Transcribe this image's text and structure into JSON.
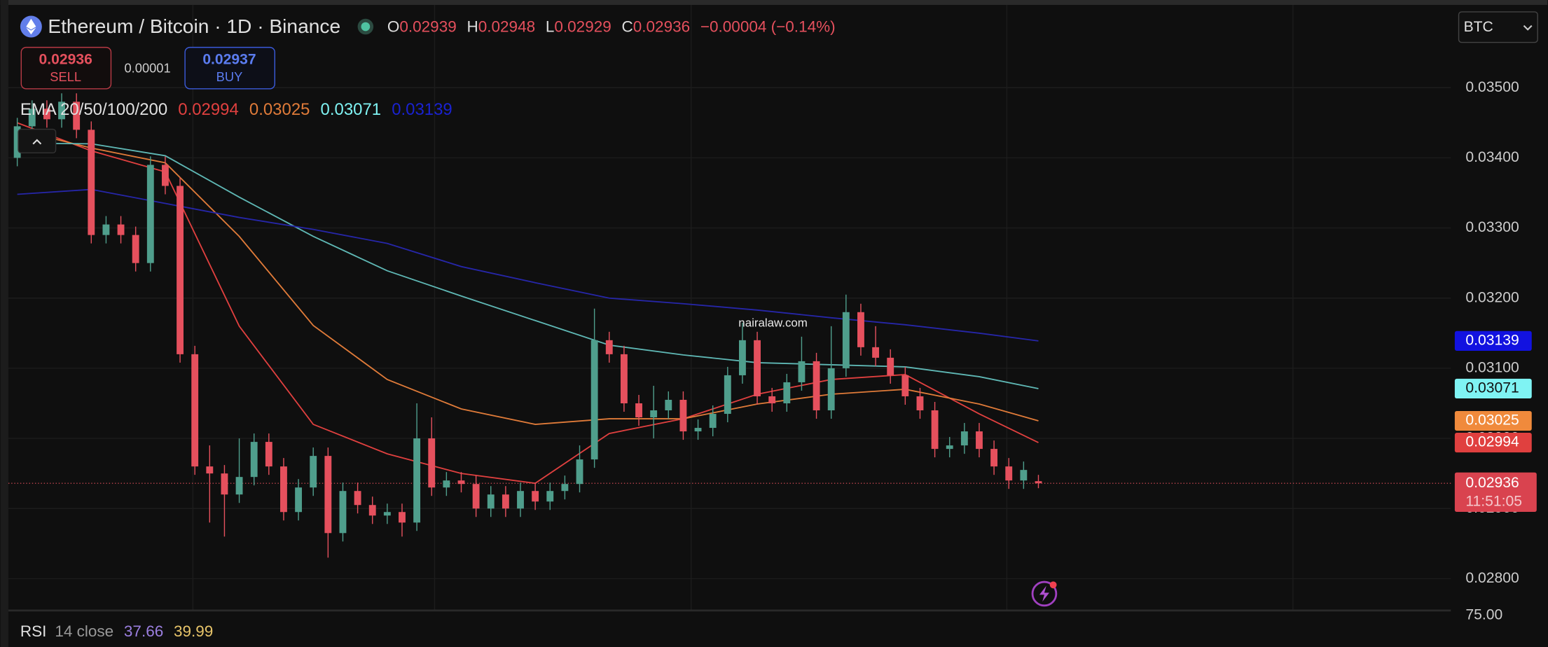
{
  "header": {
    "title": "Ethereum / Bitcoin · 1D · Binance",
    "o": "O",
    "h": "H",
    "l": "L",
    "c": "C",
    "change": "−0.00004 (−0.14%)"
  },
  "trade": {
    "sell": "SELL",
    "spread": "0.00001",
    "buy_price": "0.02937",
    "buy": "BUY"
  },
  "ema_legend": "EMA 20/50/100/200",
  "currency": "BTC",
  "watermark": "nairalaw.com",
  "countdown": "11:51:05",
  "rsi": {
    "name": "RSI",
    "params": "14 close",
    "value": "37.66",
    "ma": "39.99",
    "top_tick": "75.00"
  },
  "chart_data": {
    "type": "candlestick",
    "up_color": "#4f9e8c",
    "down_color": "#e5505d",
    "ylim": [
      0.02756,
      0.03611
    ],
    "yticks": [
      {
        "value": 0.035,
        "label": "0.03500"
      },
      {
        "value": 0.034,
        "label": "0.03400"
      },
      {
        "value": 0.033,
        "label": "0.03300"
      },
      {
        "value": 0.032,
        "label": "0.03200"
      },
      {
        "value": 0.031,
        "label": "0.03100"
      },
      {
        "value": 0.03,
        "label": "0.03000"
      },
      {
        "value": 0.029,
        "label": "0.02900"
      },
      {
        "value": 0.028,
        "label": "0.02800"
      }
    ],
    "open": [
      0.034,
      0.03445,
      0.0347,
      0.03455,
      0.0348,
      0.0344,
      0.0329,
      0.03305,
      0.0329,
      0.0325,
      0.0339,
      0.0336,
      0.0312,
      0.0296,
      0.0295,
      0.0292,
      0.02945,
      0.02995,
      0.0296,
      0.02895,
      0.0293,
      0.02975,
      0.02865,
      0.02925,
      0.02905,
      0.0289,
      0.02895,
      0.0288,
      0.03,
      0.0293,
      0.0294,
      0.02935,
      0.029,
      0.0292,
      0.029,
      0.02925,
      0.0291,
      0.02925,
      0.02935,
      0.0297,
      0.0314,
      0.0312,
      0.0305,
      0.0303,
      0.0304,
      0.03055,
      0.0301,
      0.03015,
      0.03035,
      0.0309,
      0.0314,
      0.0306,
      0.0305,
      0.0308,
      0.0311,
      0.0304,
      0.031,
      0.0318,
      0.0313,
      0.03115,
      0.0309,
      0.0306,
      0.0304,
      0.02985,
      0.0299,
      0.0301,
      0.02985,
      0.0296,
      0.0294,
      0.02939
    ],
    "high": [
      0.03457,
      0.03482,
      0.03482,
      0.03492,
      0.03492,
      0.03452,
      0.03317,
      0.03317,
      0.03302,
      0.03402,
      0.03402,
      0.03372,
      0.03132,
      0.0299,
      0.02962,
      0.03,
      0.03007,
      0.03007,
      0.02972,
      0.02942,
      0.02987,
      0.02987,
      0.02937,
      0.02937,
      0.02917,
      0.02907,
      0.02907,
      0.0305,
      0.0303,
      0.02952,
      0.02952,
      0.02947,
      0.02932,
      0.02932,
      0.02937,
      0.02937,
      0.02937,
      0.02947,
      0.0299,
      0.03185,
      0.03152,
      0.03132,
      0.03062,
      0.03075,
      0.03067,
      0.03067,
      0.03027,
      0.03047,
      0.03102,
      0.03165,
      0.03152,
      0.03072,
      0.03092,
      0.03145,
      0.03122,
      0.0316,
      0.03205,
      0.03192,
      0.0316,
      0.03127,
      0.03102,
      0.03072,
      0.03052,
      0.03002,
      0.03022,
      0.03022,
      0.02997,
      0.02972,
      0.02967,
      0.02948
    ],
    "low": [
      0.03388,
      0.03433,
      0.03443,
      0.03443,
      0.03428,
      0.03278,
      0.03278,
      0.03278,
      0.03238,
      0.03238,
      0.03348,
      0.03108,
      0.02948,
      0.0288,
      0.0286,
      0.02908,
      0.02933,
      0.02948,
      0.02883,
      0.02883,
      0.02918,
      0.0283,
      0.02853,
      0.02893,
      0.02878,
      0.02878,
      0.0286,
      0.02868,
      0.02918,
      0.02918,
      0.02923,
      0.02888,
      0.02888,
      0.02888,
      0.02888,
      0.02898,
      0.02898,
      0.02913,
      0.02923,
      0.02958,
      0.03108,
      0.03038,
      0.03018,
      0.03,
      0.03028,
      0.02998,
      0.02998,
      0.03003,
      0.03023,
      0.03078,
      0.03048,
      0.03038,
      0.03038,
      0.03068,
      0.03028,
      0.03028,
      0.03088,
      0.03118,
      0.03103,
      0.03078,
      0.03048,
      0.03028,
      0.02973,
      0.02973,
      0.02978,
      0.02973,
      0.02948,
      0.02928,
      0.02928,
      0.02929
    ],
    "close": [
      0.03445,
      0.0347,
      0.03455,
      0.0348,
      0.0344,
      0.0329,
      0.03305,
      0.0329,
      0.0325,
      0.0339,
      0.0336,
      0.0312,
      0.0296,
      0.0295,
      0.0292,
      0.02945,
      0.02995,
      0.0296,
      0.02895,
      0.0293,
      0.02975,
      0.02865,
      0.02925,
      0.02905,
      0.0289,
      0.02895,
      0.0288,
      0.03,
      0.0293,
      0.0294,
      0.02935,
      0.029,
      0.0292,
      0.029,
      0.02925,
      0.0291,
      0.02925,
      0.02935,
      0.0297,
      0.0314,
      0.0312,
      0.0305,
      0.0303,
      0.0304,
      0.03055,
      0.0301,
      0.03015,
      0.03035,
      0.0309,
      0.0314,
      0.0306,
      0.0305,
      0.0308,
      0.0311,
      0.0304,
      0.031,
      0.0318,
      0.0313,
      0.03115,
      0.0309,
      0.0306,
      0.0304,
      0.02985,
      0.0299,
      0.0301,
      0.02985,
      0.0296,
      0.0294,
      0.02955,
      0.02936
    ],
    "series": [
      {
        "color": "#e0403f",
        "badge": "#e0403f",
        "values": [
          0.0345,
          0.0341,
          0.0338,
          0.0316,
          0.0302,
          0.02978,
          0.0295,
          0.02936,
          0.03007,
          0.03028,
          0.03063,
          0.03084,
          0.03091,
          0.03035,
          0.02994
        ]
      },
      {
        "color": "#e07b39",
        "badge": "#f08a3c",
        "values": [
          0.0344,
          0.03414,
          0.03393,
          0.03288,
          0.03161,
          0.03084,
          0.03042,
          0.0302,
          0.03028,
          0.03028,
          0.03049,
          0.03063,
          0.0307,
          0.03049,
          0.03025
        ]
      },
      {
        "color": "#5fb8b5",
        "badge": "#7ff3f3",
        "values": [
          0.03421,
          0.0342,
          0.03403,
          0.03344,
          0.03288,
          0.03239,
          0.03203,
          0.03168,
          0.03133,
          0.03119,
          0.03108,
          0.03105,
          0.03102,
          0.03088,
          0.03071
        ]
      },
      {
        "color": "#2626a8",
        "badge": "#1212e0",
        "values": [
          0.03348,
          0.03355,
          0.03335,
          0.03315,
          0.03298,
          0.03278,
          0.03245,
          0.03222,
          0.032,
          0.03192,
          0.03183,
          0.03172,
          0.03162,
          0.0315,
          0.03139
        ]
      }
    ],
    "ema_x": [
      0,
      5,
      10,
      15,
      20,
      25,
      30,
      35,
      40,
      45,
      50,
      55,
      60,
      65,
      69
    ]
  }
}
